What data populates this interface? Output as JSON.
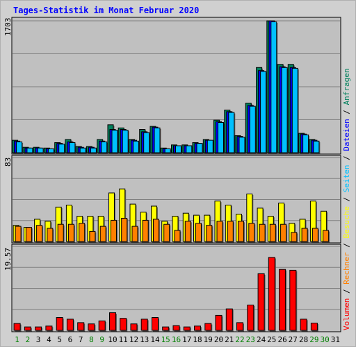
{
  "chart_data": {
    "type": "bar",
    "title": "Tages-Statistik im Monat Februar 2020",
    "x": [
      1,
      2,
      3,
      4,
      5,
      6,
      7,
      8,
      9,
      10,
      11,
      12,
      13,
      14,
      15,
      16,
      17,
      18,
      19,
      20,
      21,
      22,
      23,
      24,
      25,
      26,
      27,
      28,
      29,
      30,
      31
    ],
    "x_label_colors": [
      "#008000",
      "#008000",
      "#000000",
      "#000000",
      "#000000",
      "#000000",
      "#000000",
      "#008000",
      "#008000",
      "#000000",
      "#000000",
      "#000000",
      "#000000",
      "#000000",
      "#008000",
      "#008000",
      "#000000",
      "#000000",
      "#000000",
      "#000000",
      "#000000",
      "#008000",
      "#008000",
      "#000000",
      "#000000",
      "#000000",
      "#000000",
      "#000000",
      "#008000",
      "#008000",
      "#000000"
    ],
    "panels": [
      {
        "id": "top",
        "ymax_label": "1703",
        "ymax": 1703,
        "series": [
          {
            "name": "Anfragen",
            "color": "#00805c",
            "values": [
              160,
              70,
              70,
              60,
              130,
              170,
              80,
              80,
              170,
              360,
              320,
              170,
              300,
              340,
              60,
              100,
              100,
              130,
              170,
              420,
              550,
              220,
              640,
              1100,
              1703,
              1140,
              1140,
              250,
              170,
              0,
              0
            ]
          },
          {
            "name": "Dateien",
            "color": "#0000ff",
            "values": [
              150,
              60,
              60,
              50,
              120,
              140,
              70,
              70,
              150,
              300,
              300,
              160,
              270,
              330,
              50,
              90,
              90,
              120,
              160,
              400,
              530,
              210,
              610,
              1060,
              1703,
              1110,
              1100,
              240,
              160,
              0,
              0
            ]
          },
          {
            "name": "Seiten",
            "color": "#00c0ff",
            "values": [
              140,
              60,
              60,
              50,
              110,
              130,
              60,
              60,
              140,
              290,
              290,
              150,
              260,
              320,
              50,
              90,
              90,
              120,
              160,
              390,
              520,
              200,
              600,
              1050,
              1690,
              1100,
              1090,
              230,
              150,
              0,
              0
            ]
          }
        ]
      },
      {
        "id": "middle",
        "ymax_label": "83",
        "ymax": 83,
        "series": [
          {
            "name": "Besuche",
            "color": "#ffff00",
            "values": [
              16,
              14,
              22,
              20,
              34,
              36,
              25,
              25,
              25,
              48,
              52,
              37,
              29,
              35,
              20,
              25,
              28,
              26,
              26,
              40,
              36,
              27,
              47,
              33,
              25,
              38,
              18,
              22,
              40,
              30,
              0
            ]
          },
          {
            "name": "Rechner",
            "color": "#ff8000",
            "values": [
              15,
              14,
              16,
              13,
              17,
              17,
              18,
              10,
              15,
              21,
              23,
              15,
              21,
              22,
              17,
              11,
              20,
              18,
              16,
              20,
              20,
              20,
              18,
              17,
              17,
              17,
              9,
              13,
              13,
              11,
              0
            ]
          }
        ]
      },
      {
        "id": "bottom",
        "ymax_label": "19.57",
        "ymax": 19.57,
        "series": [
          {
            "name": "Volumen",
            "color": "#ff0000",
            "values": [
              1.6,
              0.8,
              0.8,
              1.0,
              3.0,
              2.6,
              1.8,
              1.5,
              2.2,
              4.1,
              2.8,
              1.5,
              2.6,
              3.0,
              0.8,
              1.1,
              0.8,
              1.0,
              1.6,
              3.5,
              5.0,
              1.8,
              5.9,
              13.2,
              17.0,
              14.2,
              14.0,
              2.6,
              1.7,
              0,
              0
            ]
          }
        ]
      }
    ],
    "legend_right": [
      {
        "label": "Volumen",
        "color": "#ff0000"
      },
      {
        "label": "Rechner",
        "color": "#ff8000"
      },
      {
        "label": "Besuche",
        "color": "#ffff00"
      },
      {
        "label": "Seiten",
        "color": "#00c0ff"
      },
      {
        "label": "Dateien",
        "color": "#0000ff"
      },
      {
        "label": "Anfragen",
        "color": "#00805c"
      }
    ],
    "legend_separator": " / ",
    "grid": true
  }
}
